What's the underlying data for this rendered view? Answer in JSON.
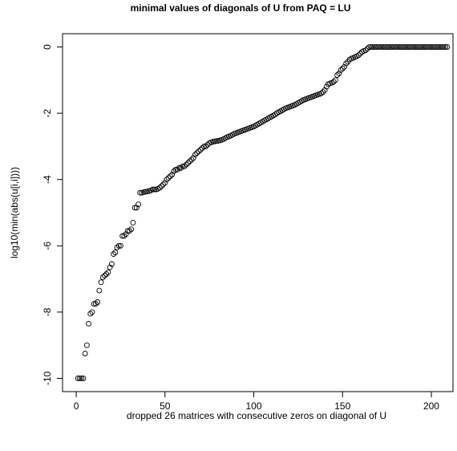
{
  "chart_data": {
    "type": "scatter",
    "title": "minimal values of diagonals of U from PAQ = LU",
    "x_label": "dropped 26 matrices with consecutive zeros on diagonal of U",
    "y_label": "log10(min(abs(u[i,i])))",
    "xlim": [
      -7.7,
      212.2
    ],
    "ylim": [
      -10.4,
      0.4
    ],
    "xticks": [
      0,
      50,
      100,
      150,
      200
    ],
    "yticks": [
      -10,
      -8,
      -6,
      -4,
      -2,
      0
    ],
    "series": [
      {
        "color": "#000000",
        "x": [
          1,
          2,
          3,
          4,
          5,
          6,
          7,
          8,
          9,
          10,
          11,
          12,
          13,
          14,
          15,
          16,
          17,
          18,
          19,
          20,
          21,
          22,
          23,
          24,
          25,
          26,
          27,
          28,
          29,
          30,
          31,
          32,
          33,
          34,
          35,
          36,
          37,
          38,
          39,
          40,
          41,
          42,
          43,
          44,
          45,
          46,
          47,
          48,
          49,
          50,
          51,
          52,
          53,
          54,
          55,
          56,
          57,
          58,
          59,
          60,
          61,
          62,
          63,
          64,
          65,
          66,
          67,
          68,
          69,
          70,
          71,
          72,
          73,
          74,
          75,
          76,
          77,
          78,
          79,
          80,
          81,
          82,
          83,
          84,
          85,
          86,
          87,
          88,
          89,
          90,
          91,
          92,
          93,
          94,
          95,
          96,
          97,
          98,
          99,
          100,
          101,
          102,
          103,
          104,
          105,
          106,
          107,
          108,
          109,
          110,
          111,
          112,
          113,
          114,
          115,
          116,
          117,
          118,
          119,
          120,
          121,
          122,
          123,
          124,
          125,
          126,
          127,
          128,
          129,
          130,
          131,
          132,
          133,
          134,
          135,
          136,
          137,
          138,
          139,
          140,
          141,
          142,
          143,
          144,
          145,
          146,
          147,
          148,
          149,
          150,
          151,
          152,
          153,
          154,
          155,
          156,
          157,
          158,
          159,
          160,
          161,
          162,
          163,
          164,
          165,
          166,
          167,
          168,
          169,
          170,
          171,
          172,
          173,
          174,
          175,
          176,
          177,
          178,
          179,
          180,
          181,
          182,
          183,
          184,
          185,
          186,
          187,
          188,
          189,
          190,
          191,
          192,
          193,
          194,
          195,
          196,
          197,
          198,
          199,
          200,
          201,
          202,
          203,
          204,
          205,
          206,
          207,
          208,
          209
        ],
        "values": [
          -10,
          -10,
          -10,
          -10,
          -9.25,
          -9.0,
          -8.35,
          -8.05,
          -8.0,
          -7.75,
          -7.75,
          -7.7,
          -7.35,
          -7.1,
          -6.95,
          -6.9,
          -6.85,
          -6.8,
          -6.65,
          -6.55,
          -6.25,
          -6.2,
          -6.05,
          -6.0,
          -6.0,
          -5.7,
          -5.7,
          -5.65,
          -5.55,
          -5.55,
          -5.5,
          -5.3,
          -4.85,
          -4.85,
          -4.75,
          -4.4,
          -4.4,
          -4.38,
          -4.37,
          -4.36,
          -4.35,
          -4.33,
          -4.3,
          -4.3,
          -4.3,
          -4.28,
          -4.25,
          -4.2,
          -4.15,
          -4.1,
          -4.0,
          -3.95,
          -3.9,
          -3.85,
          -3.75,
          -3.7,
          -3.7,
          -3.65,
          -3.65,
          -3.6,
          -3.6,
          -3.55,
          -3.5,
          -3.45,
          -3.4,
          -3.35,
          -3.25,
          -3.2,
          -3.15,
          -3.1,
          -3.05,
          -3.0,
          -3.0,
          -2.95,
          -2.9,
          -2.88,
          -2.86,
          -2.85,
          -2.84,
          -2.83,
          -2.82,
          -2.8,
          -2.78,
          -2.75,
          -2.72,
          -2.7,
          -2.68,
          -2.65,
          -2.62,
          -2.6,
          -2.58,
          -2.56,
          -2.54,
          -2.52,
          -2.5,
          -2.48,
          -2.46,
          -2.44,
          -2.42,
          -2.4,
          -2.37,
          -2.34,
          -2.31,
          -2.28,
          -2.25,
          -2.22,
          -2.19,
          -2.16,
          -2.13,
          -2.1,
          -2.07,
          -2.04,
          -2.0,
          -1.97,
          -1.94,
          -1.91,
          -1.88,
          -1.85,
          -1.83,
          -1.81,
          -1.79,
          -1.77,
          -1.75,
          -1.72,
          -1.69,
          -1.66,
          -1.63,
          -1.6,
          -1.58,
          -1.56,
          -1.54,
          -1.52,
          -1.5,
          -1.48,
          -1.46,
          -1.44,
          -1.42,
          -1.4,
          -1.36,
          -1.3,
          -1.2,
          -1.12,
          -1.1,
          -1.08,
          -1.05,
          -1.0,
          -0.85,
          -0.8,
          -0.7,
          -0.65,
          -0.6,
          -0.5,
          -0.45,
          -0.38,
          -0.35,
          -0.33,
          -0.3,
          -0.28,
          -0.25,
          -0.2,
          -0.15,
          -0.12,
          -0.1,
          -0.05,
          0,
          0,
          0,
          0,
          0,
          0,
          0,
          0,
          0,
          0,
          0,
          0,
          0,
          0,
          0,
          0,
          0,
          0,
          0,
          0,
          0,
          0,
          0,
          0,
          0,
          0,
          0,
          0,
          0,
          0,
          0,
          0,
          0,
          0,
          0,
          0,
          0,
          0,
          0,
          0,
          0,
          0,
          0,
          0,
          0
        ]
      }
    ]
  }
}
